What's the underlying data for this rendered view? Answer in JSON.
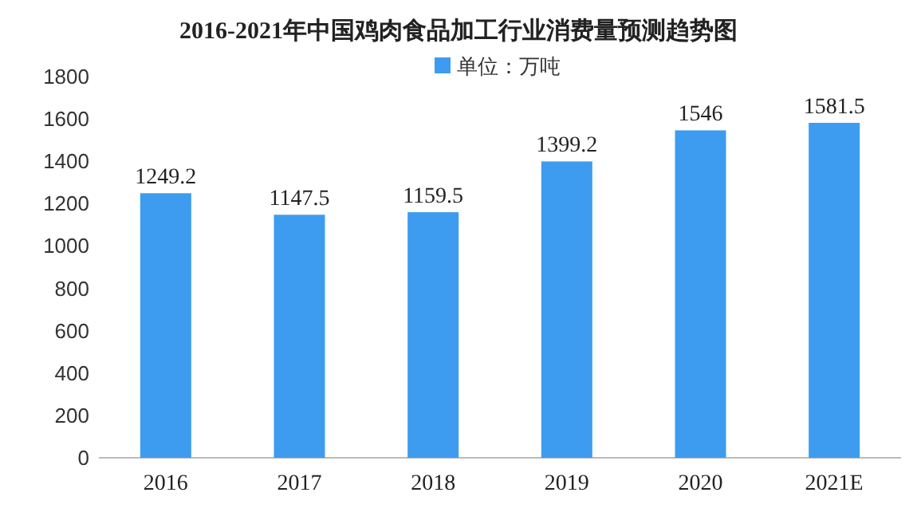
{
  "chart_data": {
    "type": "bar",
    "title": "2016-2021年中国鸡肉食品加工行业消费量预测趋势图",
    "categories": [
      "2016",
      "2017",
      "2018",
      "2019",
      "2020",
      "2021E"
    ],
    "series": [
      {
        "name": "单位：万吨",
        "color": "#3d9cf0",
        "values": [
          1249.2,
          1147.5,
          1159.5,
          1399.2,
          1546,
          1581.5
        ]
      }
    ],
    "ylim": [
      0,
      1800
    ],
    "yticks": [
      0,
      200,
      400,
      600,
      800,
      1000,
      1200,
      1400,
      1600,
      1800
    ],
    "data_labels": true,
    "legend": "top"
  }
}
